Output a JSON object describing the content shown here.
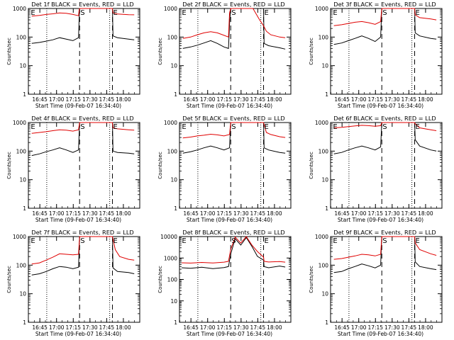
{
  "chart_data": [
    {
      "type": "line",
      "title": "Det 1f BLACK = Events, RED = LLD",
      "ylabel": "Counts/sec",
      "xlabel": "Start Time (09-Feb-07 16:34:40)",
      "yscale": "log",
      "ylim": [
        1,
        1000
      ],
      "yticks": [
        1,
        10,
        100,
        1000
      ],
      "xlim_minutes_from_start": [
        0,
        100
      ],
      "xtick_labels": [
        "16:45",
        "17:00",
        "17:15",
        "17:30",
        "17:45",
        "18:00"
      ],
      "xticks": [
        10.3,
        25.3,
        40.3,
        55.3,
        70.3,
        85.3
      ],
      "markers": [
        {
          "label": "E",
          "x": 1.5
        },
        {
          "label": "S",
          "x": 46
        },
        {
          "label": "E",
          "x": 75.5
        }
      ],
      "dotted_lines": [
        16.5,
        73
      ],
      "dashed_lines": [
        46,
        75.5
      ],
      "series": [
        {
          "color": "#000000",
          "x": [
            3,
            10,
            16,
            22,
            28,
            34,
            40,
            45,
            45.6,
            46,
            75.5,
            76,
            80,
            90,
            95
          ],
          "values": [
            60,
            65,
            72,
            80,
            95,
            85,
            75,
            95,
            450,
            1000,
            1000,
            110,
            95,
            85,
            80
          ]
        },
        {
          "color": "#e00000",
          "x": [
            3,
            10,
            16,
            22,
            28,
            34,
            40,
            45,
            45.6,
            46,
            75.5,
            76,
            80,
            90,
            95
          ],
          "values": [
            540,
            570,
            620,
            650,
            700,
            680,
            620,
            560,
            900,
            1000,
            1000,
            700,
            640,
            610,
            600
          ]
        }
      ]
    },
    {
      "type": "line",
      "title": "Det 2f BLACK = Events, RED = LLD",
      "ylabel": "Counts/sec",
      "xlabel": "Start Time (09-Feb-07 16:34:40)",
      "yscale": "log",
      "ylim": [
        1,
        1000
      ],
      "yticks": [
        1,
        10,
        100,
        1000
      ],
      "xlim_minutes_from_start": [
        0,
        100
      ],
      "xtick_labels": [
        "16:45",
        "17:00",
        "17:15",
        "17:30",
        "17:45",
        "18:00"
      ],
      "xticks": [
        10.3,
        25.3,
        40.3,
        55.3,
        70.3,
        85.3
      ],
      "markers": [
        {
          "label": "E",
          "x": 1.5
        },
        {
          "label": "S",
          "x": 46
        },
        {
          "label": "E",
          "x": 75.5
        }
      ],
      "dotted_lines": [
        16.5,
        73
      ],
      "dashed_lines": [
        46,
        75.5
      ],
      "series": [
        {
          "color": "#000000",
          "x": [
            3,
            10,
            16,
            22,
            28,
            34,
            40,
            44,
            45,
            46,
            75.5,
            76,
            80,
            90,
            95
          ],
          "values": [
            40,
            45,
            52,
            62,
            75,
            60,
            45,
            40,
            300,
            1000,
            1000,
            60,
            50,
            42,
            38
          ]
        },
        {
          "color": "#e00000",
          "x": [
            3,
            10,
            16,
            22,
            28,
            34,
            40,
            44,
            45,
            46,
            52,
            60,
            66,
            72,
            75.5,
            78,
            82,
            90,
            95
          ],
          "values": [
            90,
            100,
            120,
            140,
            155,
            140,
            115,
            100,
            700,
            1000,
            1000,
            1000,
            1000,
            400,
            250,
            160,
            120,
            100,
            95
          ]
        }
      ]
    },
    {
      "type": "line",
      "title": "Det 3f BLACK = Events, RED = LLD",
      "ylabel": "Counts/sec",
      "xlabel": "Start Time (09-Feb-07 16:34:40)",
      "yscale": "log",
      "ylim": [
        1,
        1000
      ],
      "yticks": [
        1,
        10,
        100,
        1000
      ],
      "xlim_minutes_from_start": [
        0,
        100
      ],
      "xtick_labels": [
        "16:45",
        "17:00",
        "17:15",
        "17:30",
        "17:45",
        "18:00"
      ],
      "xticks": [
        10.3,
        25.3,
        40.3,
        55.3,
        70.3,
        85.3
      ],
      "markers": [
        {
          "label": "E",
          "x": 1.5
        },
        {
          "label": "S",
          "x": 46
        },
        {
          "label": "E",
          "x": 75.5
        }
      ],
      "dotted_lines": [
        16.5,
        73
      ],
      "dashed_lines": [
        46,
        75.5
      ],
      "series": [
        {
          "color": "#000000",
          "x": [
            3,
            10,
            16,
            22,
            28,
            34,
            40,
            45,
            46,
            75.5,
            76,
            80,
            90,
            95
          ],
          "values": [
            55,
            62,
            75,
            90,
            110,
            90,
            70,
            100,
            1000,
            1000,
            140,
            110,
            90,
            85
          ]
        },
        {
          "color": "#e00000",
          "x": [
            3,
            10,
            16,
            22,
            28,
            34,
            40,
            45,
            46,
            75.5,
            76,
            80,
            90,
            95
          ],
          "values": [
            250,
            270,
            300,
            330,
            350,
            320,
            280,
            350,
            1000,
            1000,
            600,
            480,
            430,
            400
          ]
        }
      ]
    },
    {
      "type": "line",
      "title": "Det 4f BLACK = Events, RED = LLD",
      "ylabel": "Counts/sec",
      "xlabel": "Start Time (09-Feb-07 16:34:40)",
      "yscale": "log",
      "ylim": [
        1,
        1000
      ],
      "yticks": [
        1,
        10,
        100,
        1000
      ],
      "xlim_minutes_from_start": [
        0,
        100
      ],
      "xtick_labels": [
        "16:45",
        "17:00",
        "17:15",
        "17:30",
        "17:45",
        "18:00"
      ],
      "xticks": [
        10.3,
        25.3,
        40.3,
        55.3,
        70.3,
        85.3
      ],
      "markers": [
        {
          "label": "E",
          "x": 1.5
        },
        {
          "label": "S",
          "x": 46
        },
        {
          "label": "E",
          "x": 75.5
        }
      ],
      "dotted_lines": [
        16.5,
        73
      ],
      "dashed_lines": [
        46,
        75.5
      ],
      "series": [
        {
          "color": "#000000",
          "x": [
            3,
            10,
            16,
            22,
            28,
            34,
            40,
            45,
            46,
            75.5,
            76,
            80,
            90,
            95
          ],
          "values": [
            70,
            80,
            95,
            110,
            130,
            110,
            90,
            110,
            1000,
            1000,
            100,
            90,
            85,
            80
          ]
        },
        {
          "color": "#e00000",
          "x": [
            3,
            10,
            16,
            22,
            28,
            34,
            40,
            45,
            46,
            75.5,
            76,
            80,
            90,
            95
          ],
          "values": [
            420,
            450,
            480,
            520,
            560,
            540,
            500,
            560,
            1000,
            1000,
            650,
            600,
            560,
            540
          ]
        }
      ]
    },
    {
      "type": "line",
      "title": "Det 5f BLACK = Events, RED = LLD",
      "ylabel": "Counts/sec",
      "xlabel": "Start Time (09-Feb-07 16:34:40)",
      "yscale": "log",
      "ylim": [
        1,
        1000
      ],
      "yticks": [
        1,
        10,
        100,
        1000
      ],
      "xlim_minutes_from_start": [
        0,
        100
      ],
      "xtick_labels": [
        "16:45",
        "17:00",
        "17:15",
        "17:30",
        "17:45",
        "18:00"
      ],
      "xticks": [
        10.3,
        25.3,
        40.3,
        55.3,
        70.3,
        85.3
      ],
      "markers": [
        {
          "label": "E",
          "x": 1.5
        },
        {
          "label": "S",
          "x": 46
        },
        {
          "label": "E",
          "x": 75.5
        }
      ],
      "dotted_lines": [
        16.5,
        73
      ],
      "dashed_lines": [
        46,
        75.5
      ],
      "series": [
        {
          "color": "#000000",
          "x": [
            3,
            10,
            16,
            22,
            28,
            34,
            40,
            45,
            46,
            75.5,
            76,
            80,
            90,
            95
          ],
          "values": [
            85,
            95,
            110,
            130,
            150,
            130,
            110,
            130,
            1000,
            1000,
            130,
            110,
            90,
            85
          ]
        },
        {
          "color": "#e00000",
          "x": [
            3,
            10,
            16,
            22,
            28,
            34,
            40,
            45,
            46,
            75.5,
            78,
            82,
            90,
            95
          ],
          "values": [
            290,
            310,
            340,
            360,
            390,
            370,
            340,
            380,
            1000,
            1000,
            450,
            380,
            320,
            300
          ]
        }
      ]
    },
    {
      "type": "line",
      "title": "Det 6f BLACK = Events, RED = LLD",
      "ylabel": "Counts/sec",
      "xlabel": "Start Time (09-Feb-07 16:34:40)",
      "yscale": "log",
      "ylim": [
        1,
        1000
      ],
      "yticks": [
        1,
        10,
        100,
        1000
      ],
      "xlim_minutes_from_start": [
        0,
        100
      ],
      "xtick_labels": [
        "16:45",
        "17:00",
        "17:15",
        "17:30",
        "17:45",
        "18:00"
      ],
      "xticks": [
        10.3,
        25.3,
        40.3,
        55.3,
        70.3,
        85.3
      ],
      "markers": [
        {
          "label": "E",
          "x": 1.5
        },
        {
          "label": "S",
          "x": 46
        },
        {
          "label": "E",
          "x": 75.5
        }
      ],
      "dotted_lines": [
        16.5,
        73
      ],
      "dashed_lines": [
        46,
        75.5
      ],
      "series": [
        {
          "color": "#000000",
          "x": [
            3,
            10,
            16,
            22,
            28,
            34,
            40,
            45,
            46,
            75.5,
            76,
            80,
            90,
            95
          ],
          "values": [
            80,
            90,
            110,
            130,
            150,
            130,
            110,
            140,
            1000,
            1000,
            250,
            150,
            110,
            100
          ]
        },
        {
          "color": "#e00000",
          "x": [
            3,
            10,
            16,
            22,
            28,
            34,
            40,
            45,
            46,
            75.5,
            76,
            80,
            90,
            95
          ],
          "values": [
            650,
            680,
            720,
            760,
            800,
            780,
            740,
            780,
            1000,
            1000,
            900,
            650,
            560,
            520
          ]
        }
      ]
    },
    {
      "type": "line",
      "title": "Det 7f BLACK = Events, RED = LLD",
      "ylabel": "Counts/sec",
      "xlabel": "Start Time (09-Feb-07 16:34:40)",
      "yscale": "log",
      "ylim": [
        1,
        1000
      ],
      "yticks": [
        1,
        10,
        100,
        1000
      ],
      "xlim_minutes_from_start": [
        0,
        100
      ],
      "xtick_labels": [
        "16:45",
        "17:00",
        "17:15",
        "17:30",
        "17:45",
        "18:00"
      ],
      "xticks": [
        10.3,
        25.3,
        40.3,
        55.3,
        70.3,
        85.3
      ],
      "markers": [
        {
          "label": "E",
          "x": 1.5
        },
        {
          "label": "S",
          "x": 46
        },
        {
          "label": "E",
          "x": 75.5
        }
      ],
      "dotted_lines": [
        16.5,
        73
      ],
      "dashed_lines": [
        46,
        75.5
      ],
      "series": [
        {
          "color": "#000000",
          "x": [
            3,
            10,
            16,
            22,
            28,
            34,
            40,
            45,
            46,
            75.5,
            76,
            80,
            90,
            95
          ],
          "values": [
            45,
            50,
            60,
            75,
            90,
            85,
            75,
            85,
            1000,
            1000,
            80,
            60,
            55,
            50
          ]
        },
        {
          "color": "#e00000",
          "x": [
            3,
            10,
            16,
            22,
            28,
            34,
            40,
            45,
            46,
            75.5,
            78,
            82,
            90,
            95
          ],
          "values": [
            110,
            120,
            150,
            190,
            250,
            240,
            230,
            240,
            1000,
            1000,
            350,
            200,
            160,
            150
          ]
        }
      ]
    },
    {
      "type": "line",
      "title": "Det 8f BLACK = Events, RED = LLD",
      "ylabel": "Counts/sec",
      "xlabel": "Start Time (09-Feb-07 16:34:40)",
      "yscale": "log",
      "ylim": [
        1,
        10000
      ],
      "yticks": [
        1,
        10,
        100,
        1000,
        10000
      ],
      "xlim_minutes_from_start": [
        0,
        100
      ],
      "xtick_labels": [
        "16:45",
        "17:00",
        "17:15",
        "17:30",
        "17:45",
        "18:00"
      ],
      "xticks": [
        10.3,
        25.3,
        40.3,
        55.3,
        70.3,
        85.3
      ],
      "markers": [
        {
          "label": "E",
          "x": 1.5
        },
        {
          "label": "S",
          "x": 46
        },
        {
          "label": "E",
          "x": 75.5
        }
      ],
      "dotted_lines": [
        16.5,
        73
      ],
      "dashed_lines": [
        46,
        75.5
      ],
      "series": [
        {
          "color": "#000000",
          "x": [
            2,
            10,
            20,
            30,
            40,
            44,
            46,
            50,
            55,
            60,
            65,
            70,
            75.5,
            76,
            80,
            90,
            95
          ],
          "values": [
            350,
            330,
            370,
            320,
            360,
            400,
            1500,
            8000,
            4000,
            9000,
            3500,
            1200,
            800,
            400,
            350,
            420,
            380
          ]
        },
        {
          "color": "#e00000",
          "x": [
            2,
            10,
            20,
            30,
            40,
            44,
            46,
            50,
            55,
            60,
            65,
            70,
            75.5,
            76,
            80,
            90,
            95
          ],
          "values": [
            600,
            580,
            620,
            590,
            640,
            700,
            2500,
            9500,
            5000,
            10000,
            4000,
            2000,
            1100,
            700,
            650,
            680,
            640
          ]
        }
      ]
    },
    {
      "type": "line",
      "title": "Det 9f BLACK = Events, RED = LLD",
      "ylabel": "Counts/sec",
      "xlabel": "Start Time (09-Feb-07 16:34:40)",
      "yscale": "log",
      "ylim": [
        1,
        1000
      ],
      "yticks": [
        1,
        10,
        100,
        1000
      ],
      "xlim_minutes_from_start": [
        0,
        100
      ],
      "xtick_labels": [
        "16:45",
        "17:00",
        "17:15",
        "17:30",
        "17:45",
        "18:00"
      ],
      "xticks": [
        10.3,
        25.3,
        40.3,
        55.3,
        70.3,
        85.3
      ],
      "markers": [
        {
          "label": "E",
          "x": 1.5
        },
        {
          "label": "S",
          "x": 46
        },
        {
          "label": "E",
          "x": 75.5
        }
      ],
      "dotted_lines": [
        16.5,
        73
      ],
      "dashed_lines": [
        46,
        75.5
      ],
      "series": [
        {
          "color": "#000000",
          "x": [
            3,
            10,
            16,
            22,
            28,
            34,
            40,
            45,
            46,
            75.5,
            76,
            80,
            90,
            95
          ],
          "values": [
            55,
            60,
            75,
            90,
            110,
            95,
            80,
            100,
            1000,
            1000,
            130,
            90,
            75,
            70
          ]
        },
        {
          "color": "#e00000",
          "x": [
            3,
            10,
            16,
            22,
            28,
            34,
            40,
            45,
            46,
            75.5,
            76,
            80,
            90,
            95
          ],
          "values": [
            160,
            170,
            190,
            210,
            240,
            230,
            210,
            240,
            1000,
            1000,
            600,
            350,
            250,
            220
          ]
        }
      ]
    }
  ]
}
